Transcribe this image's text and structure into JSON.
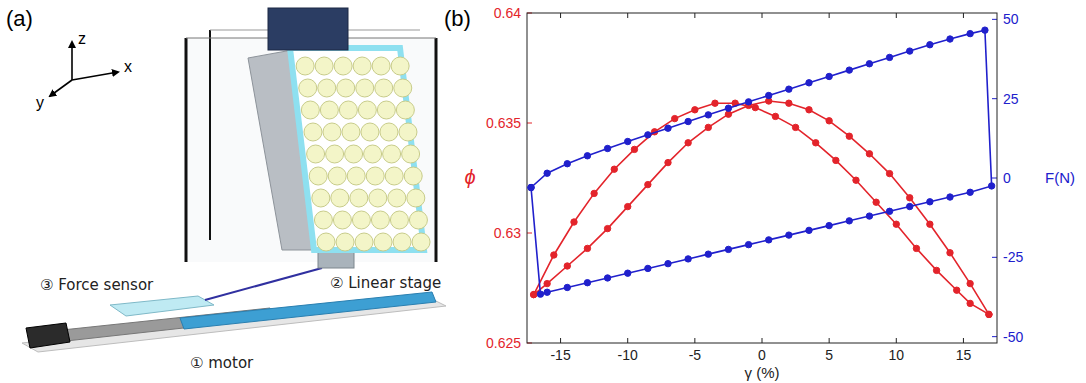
{
  "chart_data": {
    "type": "line",
    "x_label": "γ (%)",
    "y_label": "ϕ",
    "y2_label": "F(N)",
    "xlim": [
      -17.5,
      17.5
    ],
    "xticks": [
      -15,
      -10,
      -5,
      0,
      5,
      10,
      15
    ],
    "ylim": [
      0.625,
      0.64
    ],
    "yticks": [
      0.625,
      0.63,
      0.635,
      0.64
    ],
    "y2lim": [
      -52,
      52
    ],
    "y2ticks": [
      -50,
      -25,
      0,
      25,
      50
    ],
    "grid": false,
    "series": [
      {
        "color": "#e3242b",
        "marker": "circle",
        "line_style": "solid",
        "x": [
          -17,
          -15.5,
          -14,
          -12.5,
          -11,
          -9.5,
          -8,
          -6.5,
          -5,
          -3.5,
          -2,
          -0.5,
          1,
          2.5,
          4,
          5.5,
          7,
          8.5,
          10,
          11.5,
          13,
          14.5,
          15.5,
          16.9,
          16.9,
          15.5,
          14,
          12.5,
          11,
          9.5,
          8,
          6.5,
          5,
          3.5,
          2,
          0.5,
          -1,
          -2.5,
          -4,
          -5.5,
          -7,
          -8.5,
          -10,
          -11.5,
          -13,
          -14.5,
          -16,
          -17
        ],
        "values": [
          0.6272,
          0.629,
          0.6305,
          0.6318,
          0.6329,
          0.6338,
          0.6346,
          0.6352,
          0.6356,
          0.6359,
          0.6359,
          0.6357,
          0.6353,
          0.6348,
          0.6341,
          0.6333,
          0.6324,
          0.6314,
          0.6304,
          0.6293,
          0.6283,
          0.6274,
          0.6268,
          0.6263,
          0.6263,
          0.6277,
          0.6291,
          0.6304,
          0.6316,
          0.6327,
          0.6336,
          0.6344,
          0.6351,
          0.6356,
          0.6359,
          0.636,
          0.6358,
          0.6354,
          0.6348,
          0.6341,
          0.6332,
          0.6322,
          0.6312,
          0.6302,
          0.6293,
          0.6285,
          0.6277,
          0.6272
        ]
      },
      {
        "color": "#2020cc",
        "marker": "circle",
        "line_style": "solid",
        "axis": "y2",
        "x": [
          -17.2,
          -16,
          -14.5,
          -13,
          -11.5,
          -10,
          -8.5,
          -7,
          -5.5,
          -4,
          -2.5,
          -1,
          0.5,
          2,
          3.5,
          5,
          6.5,
          8,
          9.5,
          11,
          12.5,
          14,
          15.5,
          16.6,
          17.1,
          15.5,
          14,
          12.5,
          11,
          9.5,
          8,
          6.5,
          5,
          3.5,
          2,
          0.5,
          -1,
          -2.5,
          -4,
          -5.5,
          -7,
          -8.5,
          -10,
          -11.5,
          -13,
          -14.5,
          -16,
          -16.5,
          -17.2
        ],
        "values": [
          -3,
          1.5,
          4.5,
          7,
          9.3,
          11.5,
          13.6,
          15.7,
          17.8,
          19.9,
          22,
          24,
          26,
          28,
          30,
          32,
          34,
          36,
          38,
          40,
          42,
          43.8,
          45.5,
          46.6,
          -2.5,
          -4.5,
          -6,
          -7.5,
          -9,
          -10.5,
          -12,
          -13.5,
          -15,
          -16.5,
          -18,
          -19.5,
          -21,
          -22.5,
          -24,
          -25.5,
          -27,
          -28.5,
          -30,
          -31.5,
          -33,
          -34.5,
          -36,
          -36.6,
          -3
        ]
      }
    ]
  },
  "diagram": {
    "panel_labels": [
      "(a)",
      "(b)"
    ],
    "axes": [
      "z",
      "x",
      "y"
    ],
    "labels": [
      "③ Force sensor",
      "② Linear stage",
      "① motor"
    ]
  }
}
